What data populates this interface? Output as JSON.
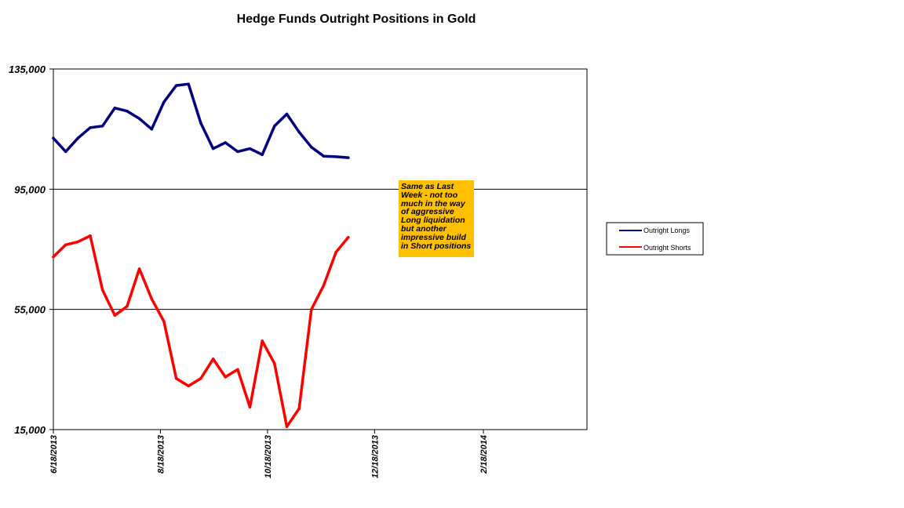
{
  "chart_data": {
    "type": "line",
    "title": "Hedge Funds Outright Positions in Gold",
    "xlabel": "",
    "ylabel": "",
    "ylim": [
      15000,
      135000
    ],
    "yticks": [
      "135,000",
      "95,000",
      "55,000",
      "15,000"
    ],
    "ytick_values": [
      135000,
      95000,
      55000,
      15000
    ],
    "grid": "horizontal major gridlines",
    "x_axis": {
      "start": "2013-06-18",
      "end": "2014-04-18",
      "tick_labels": [
        "6/18/2013",
        "8/18/2013",
        "10/18/2013",
        "12/18/2013",
        "2/18/2014"
      ],
      "tick_dates": [
        "2013-06-18",
        "2013-08-18",
        "2013-10-18",
        "2013-12-18",
        "2014-02-18"
      ]
    },
    "x": [
      "2013-06-18",
      "2013-06-25",
      "2013-07-02",
      "2013-07-09",
      "2013-07-16",
      "2013-07-23",
      "2013-07-30",
      "2013-08-06",
      "2013-08-13",
      "2013-08-20",
      "2013-08-27",
      "2013-09-03",
      "2013-09-10",
      "2013-09-17",
      "2013-09-24",
      "2013-10-01",
      "2013-10-08",
      "2013-10-15",
      "2013-10-22",
      "2013-10-29",
      "2013-11-05",
      "2013-11-12",
      "2013-11-19",
      "2013-11-26",
      "2013-12-03"
    ],
    "series": [
      {
        "name": "Outright Longs",
        "color": "#000080",
        "values": [
          112000,
          107500,
          112000,
          115500,
          116000,
          122000,
          121000,
          118500,
          115000,
          124000,
          129500,
          130000,
          117000,
          108500,
          110500,
          107500,
          108500,
          106500,
          116000,
          120000,
          114000,
          109000,
          106000,
          105800,
          105500
        ]
      },
      {
        "name": "Outright Shorts",
        "color": "#FF0000",
        "values": [
          72500,
          76500,
          77500,
          79500,
          61500,
          53000,
          56000,
          68500,
          58500,
          51000,
          32000,
          29500,
          32000,
          38500,
          32500,
          35000,
          22500,
          44500,
          37000,
          16000,
          22000,
          55000,
          63000,
          74000,
          79000
        ]
      }
    ],
    "legend": {
      "placement": "right",
      "entries": [
        "Outright Longs",
        "Outright Shorts"
      ]
    },
    "annotation": {
      "color": "#FFC000",
      "lines": [
        "Same as Last",
        "Week - not too",
        "much in the way",
        "of aggressive",
        "Long liquidation",
        "but another",
        "impressive build",
        "in Short positions"
      ]
    }
  }
}
